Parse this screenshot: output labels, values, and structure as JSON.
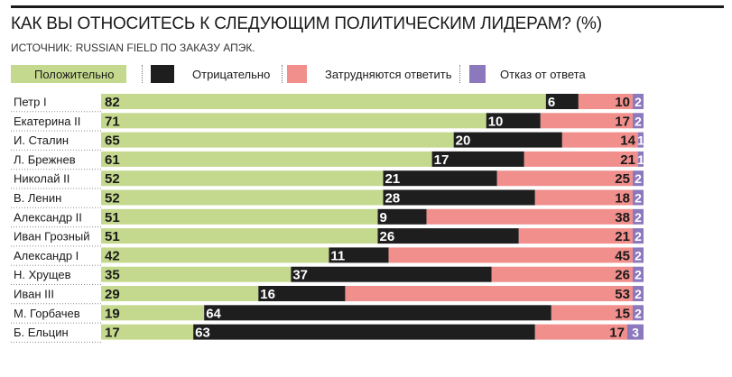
{
  "chart_data": {
    "type": "bar",
    "stacked": true,
    "orientation": "horizontal",
    "title": "КАК ВЫ ОТНОСИТЕСЬ К СЛЕДУЮЩИМ ПОЛИТИЧЕСКИМ ЛИДЕРАМ? (%)",
    "subtitle": "ИСТОЧНИК: RUSSIAN FIELD ПО ЗАКАЗУ АПЭК.",
    "legend_position": "top",
    "xlim": [
      0,
      100
    ],
    "categories": [
      "Петр I",
      "Екатерина II",
      "И. Сталин",
      "Л. Брежнев",
      "Николай II",
      "В. Ленин",
      "Александр II",
      "Иван Грозный",
      "Александр I",
      "Н. Хрущев",
      "Иван III",
      "М. Горбачев",
      "Б. Ельцин"
    ],
    "series": [
      {
        "name": "Положительно",
        "color": "#c4d98e",
        "values": [
          82,
          71,
          65,
          61,
          52,
          52,
          51,
          51,
          42,
          35,
          29,
          19,
          17
        ]
      },
      {
        "name": "Отрицательно",
        "color": "#1e1e1e",
        "values": [
          6,
          10,
          20,
          17,
          21,
          28,
          9,
          26,
          11,
          37,
          16,
          64,
          63
        ]
      },
      {
        "name": "Затрудняются ответить",
        "color": "#f08f8c",
        "values": [
          10,
          17,
          14,
          21,
          25,
          18,
          38,
          21,
          45,
          26,
          53,
          15,
          17
        ]
      },
      {
        "name": "Отказ от ответа",
        "color": "#8b78bd",
        "values": [
          2,
          2,
          1,
          1,
          2,
          2,
          2,
          2,
          2,
          2,
          2,
          2,
          3
        ]
      }
    ]
  }
}
